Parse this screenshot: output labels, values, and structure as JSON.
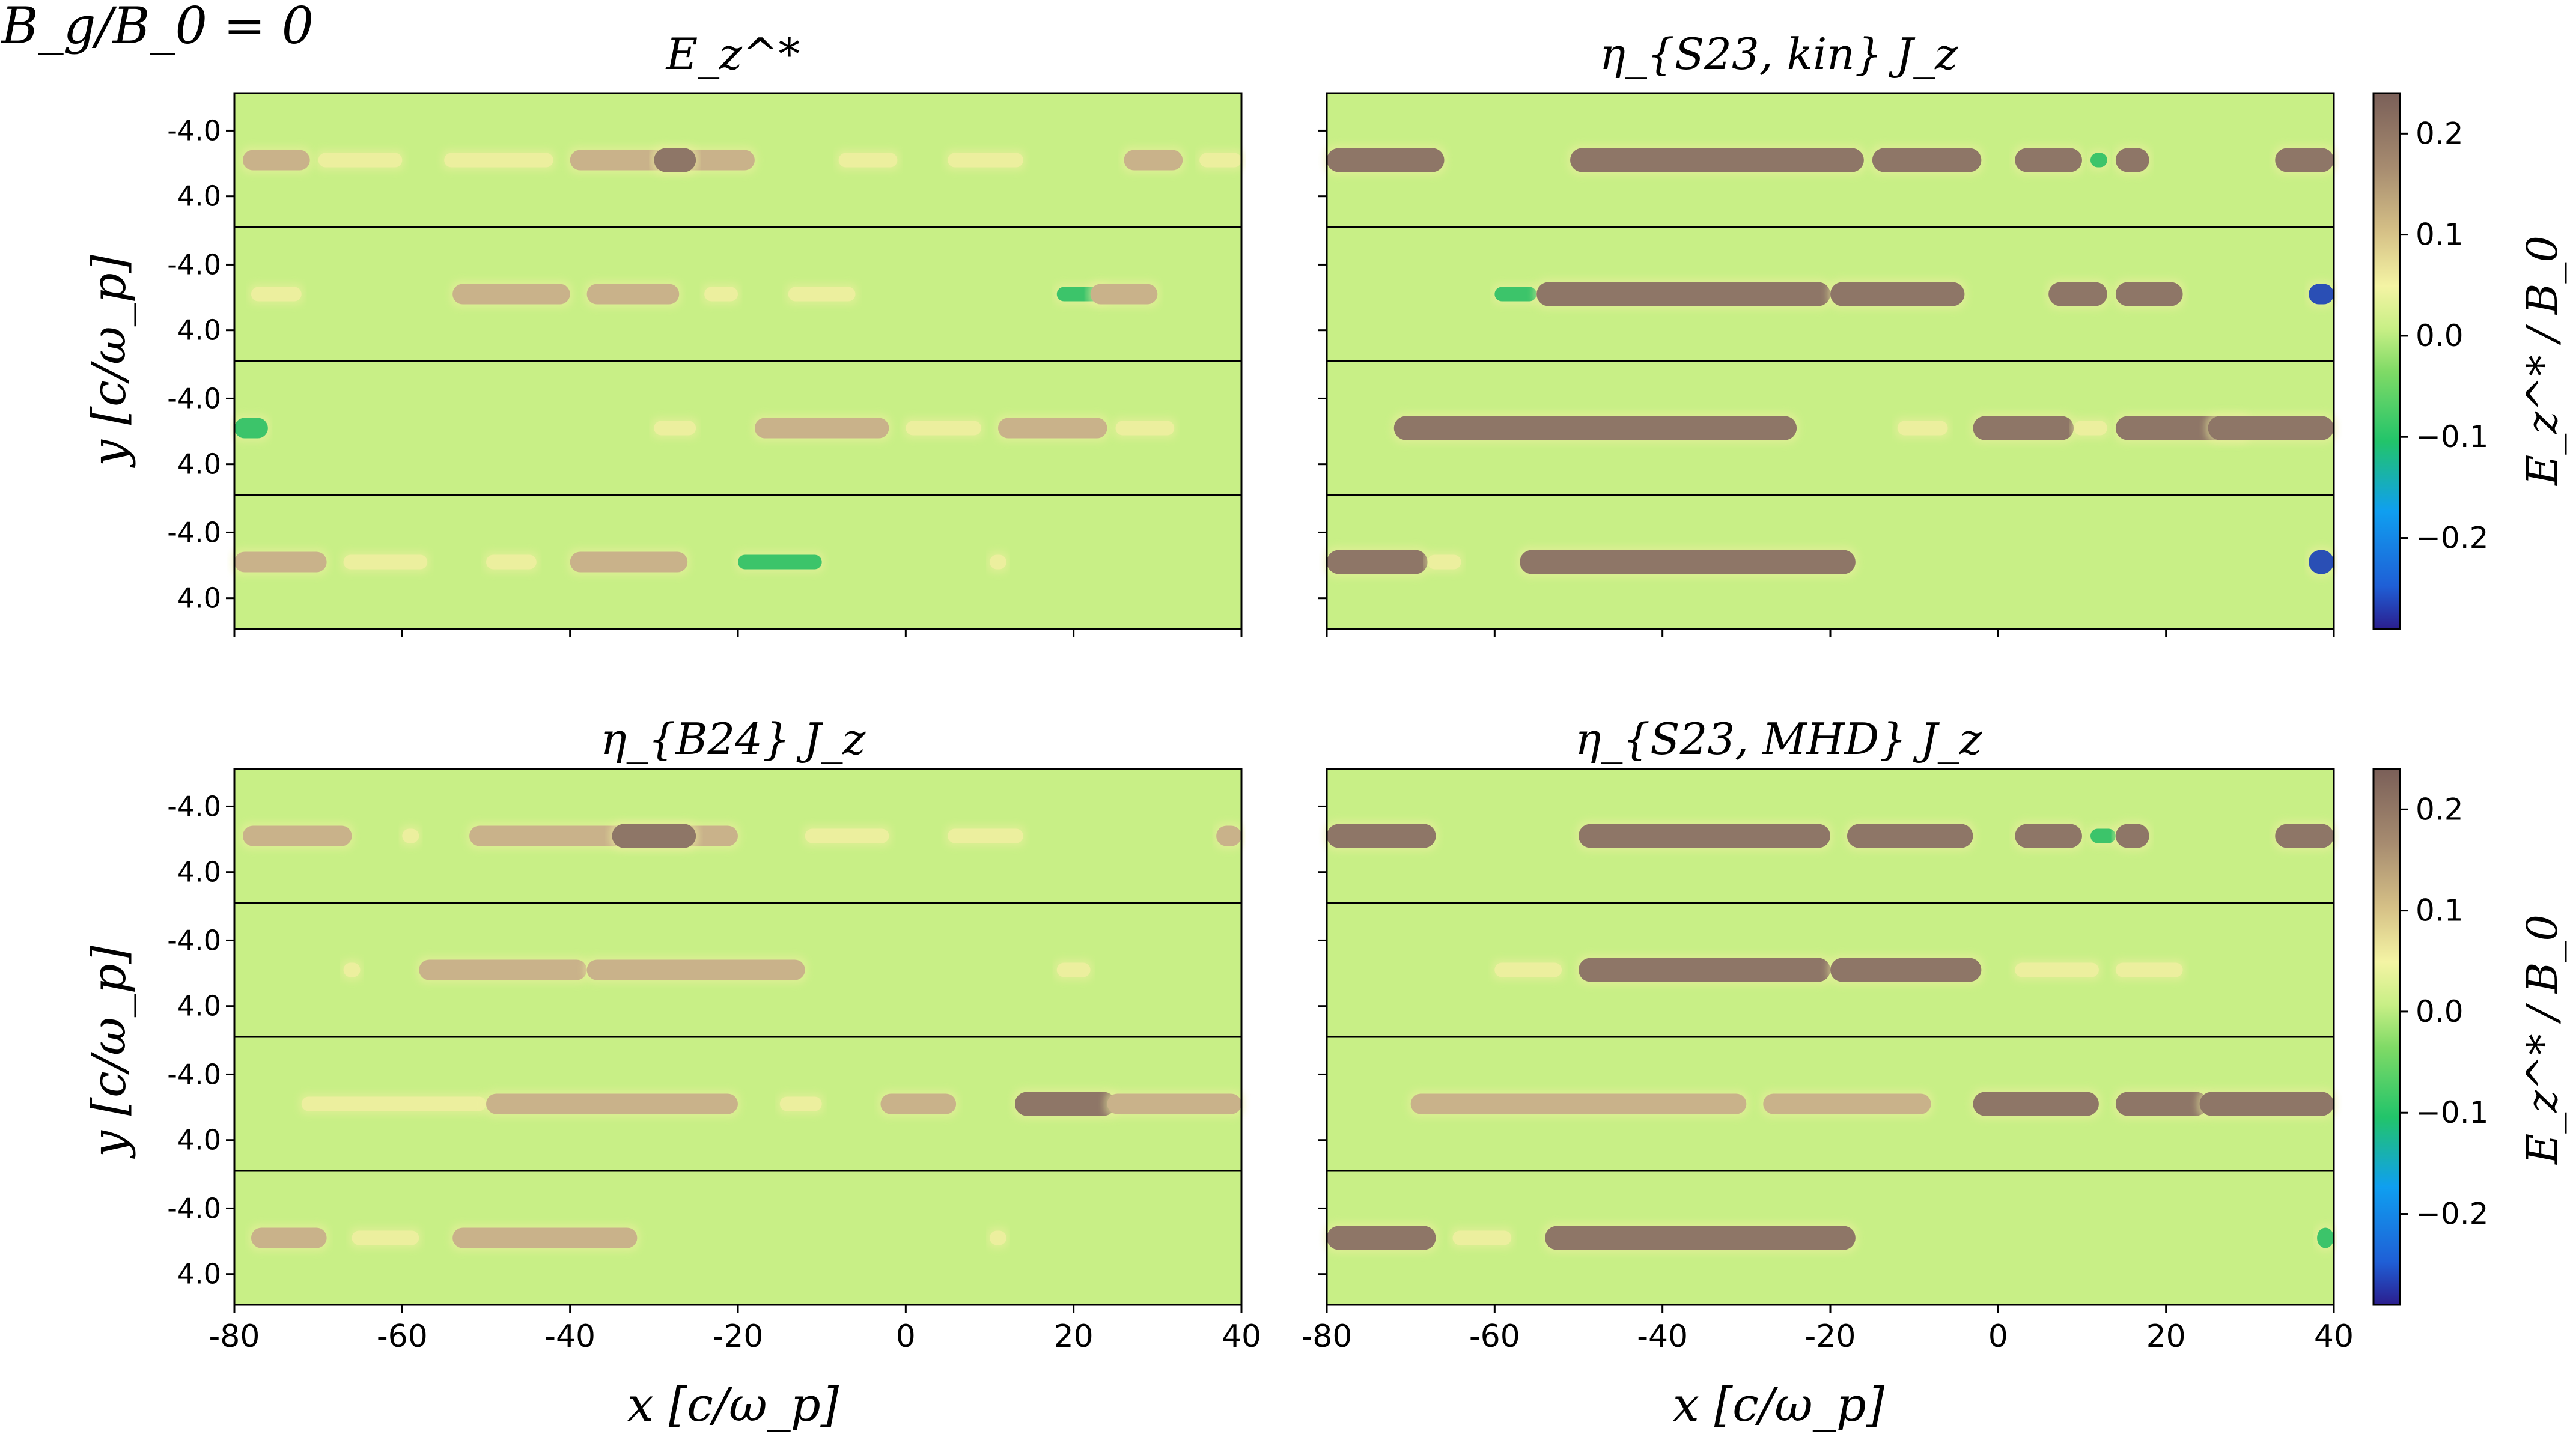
{
  "figure_label": "B_g/B_0 = 0",
  "colors": {
    "background": "#c8ef86",
    "brown": "#8e7667",
    "tan": "#c9b28a",
    "yellow": "#ecef9e",
    "green": "#3cc46a",
    "blue": "#2a4fb5"
  },
  "colorbar": {
    "label": "E_z^* / B_0",
    "ticks": [
      "0.2",
      "0.1",
      "0.0",
      "−0.1",
      "−0.2"
    ],
    "tick_values": [
      0.2,
      0.1,
      0.0,
      -0.1,
      -0.2
    ],
    "range": [
      -0.29,
      0.24
    ]
  },
  "chart_data": [
    {
      "type": "heatmap",
      "title": "E_z^*",
      "panel": "top-left",
      "xlabel": "",
      "ylabel": "y [c/ω_p]",
      "xlim": [
        -80,
        40
      ],
      "ytick_labels": [
        "-4.0",
        "4.0"
      ],
      "xtick_labels": [
        "-80",
        "-60",
        "-40",
        "-20",
        "0",
        "20",
        "40"
      ],
      "xticks": [
        -80,
        -60,
        -40,
        -20,
        0,
        20,
        40
      ],
      "rows": 4
    },
    {
      "type": "heatmap",
      "title": "η_{S23, kin} J_z",
      "panel": "top-right",
      "xlim": [
        -80,
        40
      ],
      "ytick_labels": [],
      "xtick_labels": [
        "-80",
        "-60",
        "-40",
        "-20",
        "0",
        "20",
        "40"
      ],
      "xticks": [
        -80,
        -60,
        -40,
        -20,
        0,
        20,
        40
      ],
      "rows": 4
    },
    {
      "type": "heatmap",
      "title": "η_{B24} J_z",
      "panel": "bottom-left",
      "xlabel": "x [c/ω_p]",
      "ylabel": "y [c/ω_p]",
      "xlim": [
        -80,
        40
      ],
      "ytick_labels": [
        "-4.0",
        "4.0"
      ],
      "xtick_labels": [
        "-80",
        "-60",
        "-40",
        "-20",
        "0",
        "20",
        "40"
      ],
      "xticks": [
        -80,
        -60,
        -40,
        -20,
        0,
        20,
        40
      ],
      "rows": 4
    },
    {
      "type": "heatmap",
      "title": "η_{S23, MHD} J_z",
      "panel": "bottom-right",
      "xlabel": "x [c/ω_p]",
      "xlim": [
        -80,
        40
      ],
      "ytick_labels": [],
      "xtick_labels": [
        "-80",
        "-60",
        "-40",
        "-20",
        "0",
        "20",
        "40"
      ],
      "xticks": [
        -80,
        -60,
        -40,
        -20,
        0,
        20,
        40
      ],
      "rows": 4
    }
  ],
  "structures": [
    [
      [
        [
          -79,
          -71,
          0.15
        ],
        [
          -70,
          -60,
          0.05
        ],
        [
          -55,
          -42,
          0.08
        ],
        [
          -40,
          -18,
          0.18
        ],
        [
          -30,
          -25,
          0.22
        ],
        [
          -8,
          -1,
          0.06
        ],
        [
          5,
          14,
          0.04
        ],
        [
          26,
          33,
          0.12
        ],
        [
          35,
          40,
          0.1
        ]
      ],
      [
        [
          -78,
          -72,
          0.05
        ],
        [
          -54,
          -40,
          0.16
        ],
        [
          -38,
          -27,
          0.17
        ],
        [
          -24,
          -20,
          0.05
        ],
        [
          -14,
          -6,
          0.05
        ],
        [
          18,
          24,
          -0.05
        ],
        [
          22,
          30,
          0.18
        ]
      ],
      [
        [
          -80,
          -76,
          -0.15
        ],
        [
          -30,
          -25,
          0.1
        ],
        [
          -18,
          -2,
          0.14
        ],
        [
          0,
          9,
          0.06
        ],
        [
          11,
          24,
          0.12
        ],
        [
          25,
          32,
          0.1
        ]
      ],
      [
        [
          -80,
          -69,
          0.14
        ],
        [
          -67,
          -57,
          0.05
        ],
        [
          -50,
          -44,
          0.1
        ],
        [
          -40,
          -26,
          0.15
        ],
        [
          -20,
          -10,
          -0.05
        ],
        [
          10,
          12,
          0.1
        ]
      ]
    ],
    [
      [
        [
          -80,
          -66,
          0.25
        ],
        [
          -51,
          -16,
          0.3
        ],
        [
          -15,
          -2,
          0.25
        ],
        [
          2,
          10,
          0.25
        ],
        [
          11,
          13,
          -0.1
        ],
        [
          14,
          18,
          0.25
        ],
        [
          33,
          40,
          0.25
        ]
      ],
      [
        [
          -60,
          -55,
          -0.05
        ],
        [
          -55,
          -20,
          0.3
        ],
        [
          -20,
          -4,
          0.3
        ],
        [
          6,
          13,
          0.25
        ],
        [
          14,
          22,
          0.25
        ],
        [
          37,
          40,
          -0.2
        ]
      ],
      [
        [
          -72,
          -24,
          0.3
        ],
        [
          -12,
          -6,
          0.05
        ],
        [
          -3,
          9,
          0.28
        ],
        [
          9,
          13,
          0.05
        ],
        [
          14,
          30,
          0.27
        ],
        [
          25,
          40,
          0.27
        ]
      ],
      [
        [
          -80,
          -68,
          0.3
        ],
        [
          -68,
          -64,
          0.06
        ],
        [
          -57,
          -17,
          0.3
        ],
        [
          37,
          40,
          -0.28
        ]
      ]
    ],
    [
      [
        [
          -79,
          -66,
          0.12
        ],
        [
          -60,
          -58,
          0.05
        ],
        [
          -52,
          -20,
          0.18
        ],
        [
          -35,
          -25,
          0.24
        ],
        [
          -12,
          -2,
          0.05
        ],
        [
          5,
          14,
          0.05
        ],
        [
          37,
          40,
          0.12
        ]
      ],
      [
        [
          -67,
          -65,
          0.1
        ],
        [
          -58,
          -38,
          0.2
        ],
        [
          -38,
          -12,
          0.12
        ],
        [
          18,
          22,
          0.1
        ]
      ],
      [
        [
          -72,
          -50,
          0.08
        ],
        [
          -50,
          -20,
          0.12
        ],
        [
          -15,
          -10,
          0.05
        ],
        [
          -3,
          6,
          0.2
        ],
        [
          13,
          25,
          0.22
        ],
        [
          24,
          40,
          0.14
        ]
      ],
      [
        [
          -78,
          -69,
          0.18
        ],
        [
          -66,
          -58,
          0.05
        ],
        [
          -54,
          -32,
          0.17
        ],
        [
          10,
          12,
          0.05
        ]
      ]
    ],
    [
      [
        [
          -80,
          -67,
          0.28
        ],
        [
          -50,
          -20,
          0.28
        ],
        [
          -18,
          -3,
          0.28
        ],
        [
          2,
          10,
          0.28
        ],
        [
          11,
          14,
          -0.1
        ],
        [
          14,
          18,
          0.28
        ],
        [
          33,
          40,
          0.28
        ]
      ],
      [
        [
          -60,
          -52,
          0.04
        ],
        [
          -50,
          -20,
          0.26
        ],
        [
          -20,
          -2,
          0.28
        ],
        [
          2,
          12,
          0.05
        ],
        [
          14,
          22,
          0.1
        ]
      ],
      [
        [
          -70,
          -30,
          0.2
        ],
        [
          -28,
          -8,
          0.2
        ],
        [
          -3,
          12,
          0.26
        ],
        [
          14,
          25,
          0.25
        ],
        [
          24,
          40,
          0.25
        ]
      ],
      [
        [
          -80,
          -67,
          0.28
        ],
        [
          -65,
          -58,
          0.05
        ],
        [
          -54,
          -17,
          0.28
        ],
        [
          38,
          40,
          -0.15
        ]
      ]
    ]
  ]
}
